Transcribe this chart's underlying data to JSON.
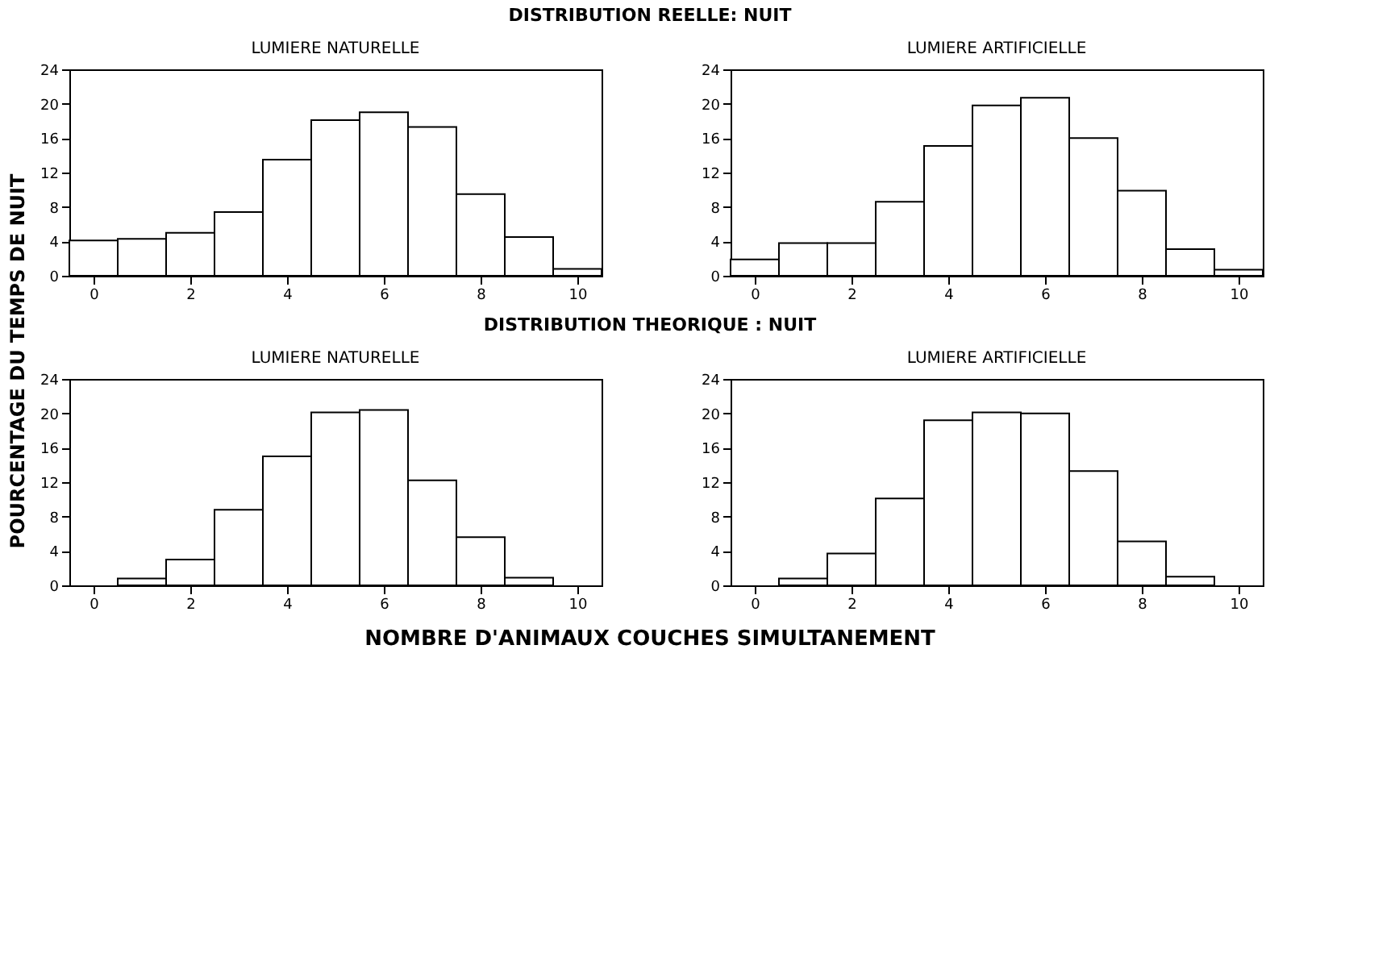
{
  "chart_data": [
    {
      "type": "histogram",
      "title": "LUMIERE NATURELLE",
      "annotations": [
        "DISTRIBUTION REELLE: NUIT"
      ],
      "ylabel": "POURCENTAGE DU TEMPS DE NUIT",
      "color": "#ffffff",
      "bins": [
        -0.5,
        0.5,
        1.5,
        2.5,
        3.5,
        4.5,
        5.5,
        6.5,
        7.5,
        8.5,
        9.5,
        10.5
      ],
      "values": [
        4.1,
        4.3,
        5.0,
        7.4,
        13.5,
        18.1,
        19.0,
        17.3,
        9.5,
        4.5,
        0.8
      ],
      "xlim": [
        -0.5,
        10.5
      ],
      "xticks": [
        0,
        2,
        4,
        6,
        8,
        10
      ],
      "ylim": [
        0,
        24
      ],
      "yticks": [
        0,
        4,
        8,
        12,
        16,
        20,
        24
      ],
      "grid": false
    },
    {
      "type": "histogram",
      "title": "LUMIERE ARTIFICIELLE",
      "color": "#ffffff",
      "bins": [
        -0.5,
        0.5,
        1.5,
        2.5,
        3.5,
        4.5,
        5.5,
        6.5,
        7.5,
        8.5,
        9.5,
        10.5
      ],
      "values": [
        1.9,
        3.8,
        3.8,
        8.6,
        15.1,
        19.8,
        20.7,
        16.0,
        9.9,
        3.1,
        0.7
      ],
      "xlim": [
        -0.5,
        10.5
      ],
      "xticks": [
        0,
        2,
        4,
        6,
        8,
        10
      ],
      "ylim": [
        0,
        24
      ],
      "yticks": [
        0,
        4,
        8,
        12,
        16,
        20,
        24
      ],
      "grid": false
    },
    {
      "type": "histogram",
      "title": "LUMIERE NATURELLE",
      "annotations": [
        "DISTRIBUTION THEORIQUE : NUIT"
      ],
      "xlabel": "NOMBRE D'ANIMAUX COUCHES SIMULTANEMENT",
      "color": "#ffffff",
      "bins": [
        0.5,
        1.5,
        2.5,
        3.5,
        4.5,
        5.5,
        6.5,
        7.5,
        8.5,
        9.5
      ],
      "values": [
        0.8,
        3.0,
        8.8,
        15.0,
        20.1,
        20.4,
        12.2,
        5.6,
        0.9
      ],
      "xlim": [
        -0.5,
        10.5
      ],
      "xticks": [
        0,
        2,
        4,
        6,
        8,
        10
      ],
      "ylim": [
        0,
        24
      ],
      "yticks": [
        0,
        4,
        8,
        12,
        16,
        20,
        24
      ],
      "grid": false
    },
    {
      "type": "histogram",
      "title": "LUMIERE ARTIFICIELLE",
      "color": "#ffffff",
      "bins": [
        0.5,
        1.5,
        2.5,
        3.5,
        4.5,
        5.5,
        6.5,
        7.5,
        8.5,
        9.5
      ],
      "values": [
        0.8,
        3.7,
        10.1,
        19.2,
        20.1,
        20.0,
        13.3,
        5.1,
        1.0
      ],
      "xlim": [
        -0.5,
        10.5
      ],
      "xticks": [
        0,
        2,
        4,
        6,
        8,
        10
      ],
      "ylim": [
        0,
        24
      ],
      "yticks": [
        0,
        4,
        8,
        12,
        16,
        20,
        24
      ],
      "grid": false
    }
  ]
}
